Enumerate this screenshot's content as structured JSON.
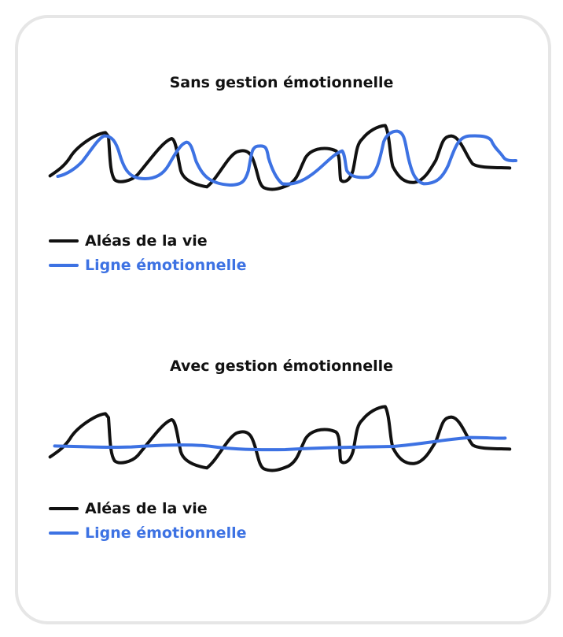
{
  "colors": {
    "life": "#111111",
    "emotion": "#3d72e3",
    "border": "#e6e6e6"
  },
  "panels": [
    {
      "title": "Sans gestion émotionnelle",
      "legend": [
        {
          "label": "Aléas de la vie",
          "color": "#111111"
        },
        {
          "label": "Ligne émotionnelle",
          "color": "#3d72e3"
        }
      ]
    },
    {
      "title": "Avec gestion émotionnelle",
      "legend": [
        {
          "label": "Aléas de la vie",
          "color": "#111111"
        },
        {
          "label": "Ligne émotionnelle",
          "color": "#3d72e3"
        }
      ]
    }
  ]
}
